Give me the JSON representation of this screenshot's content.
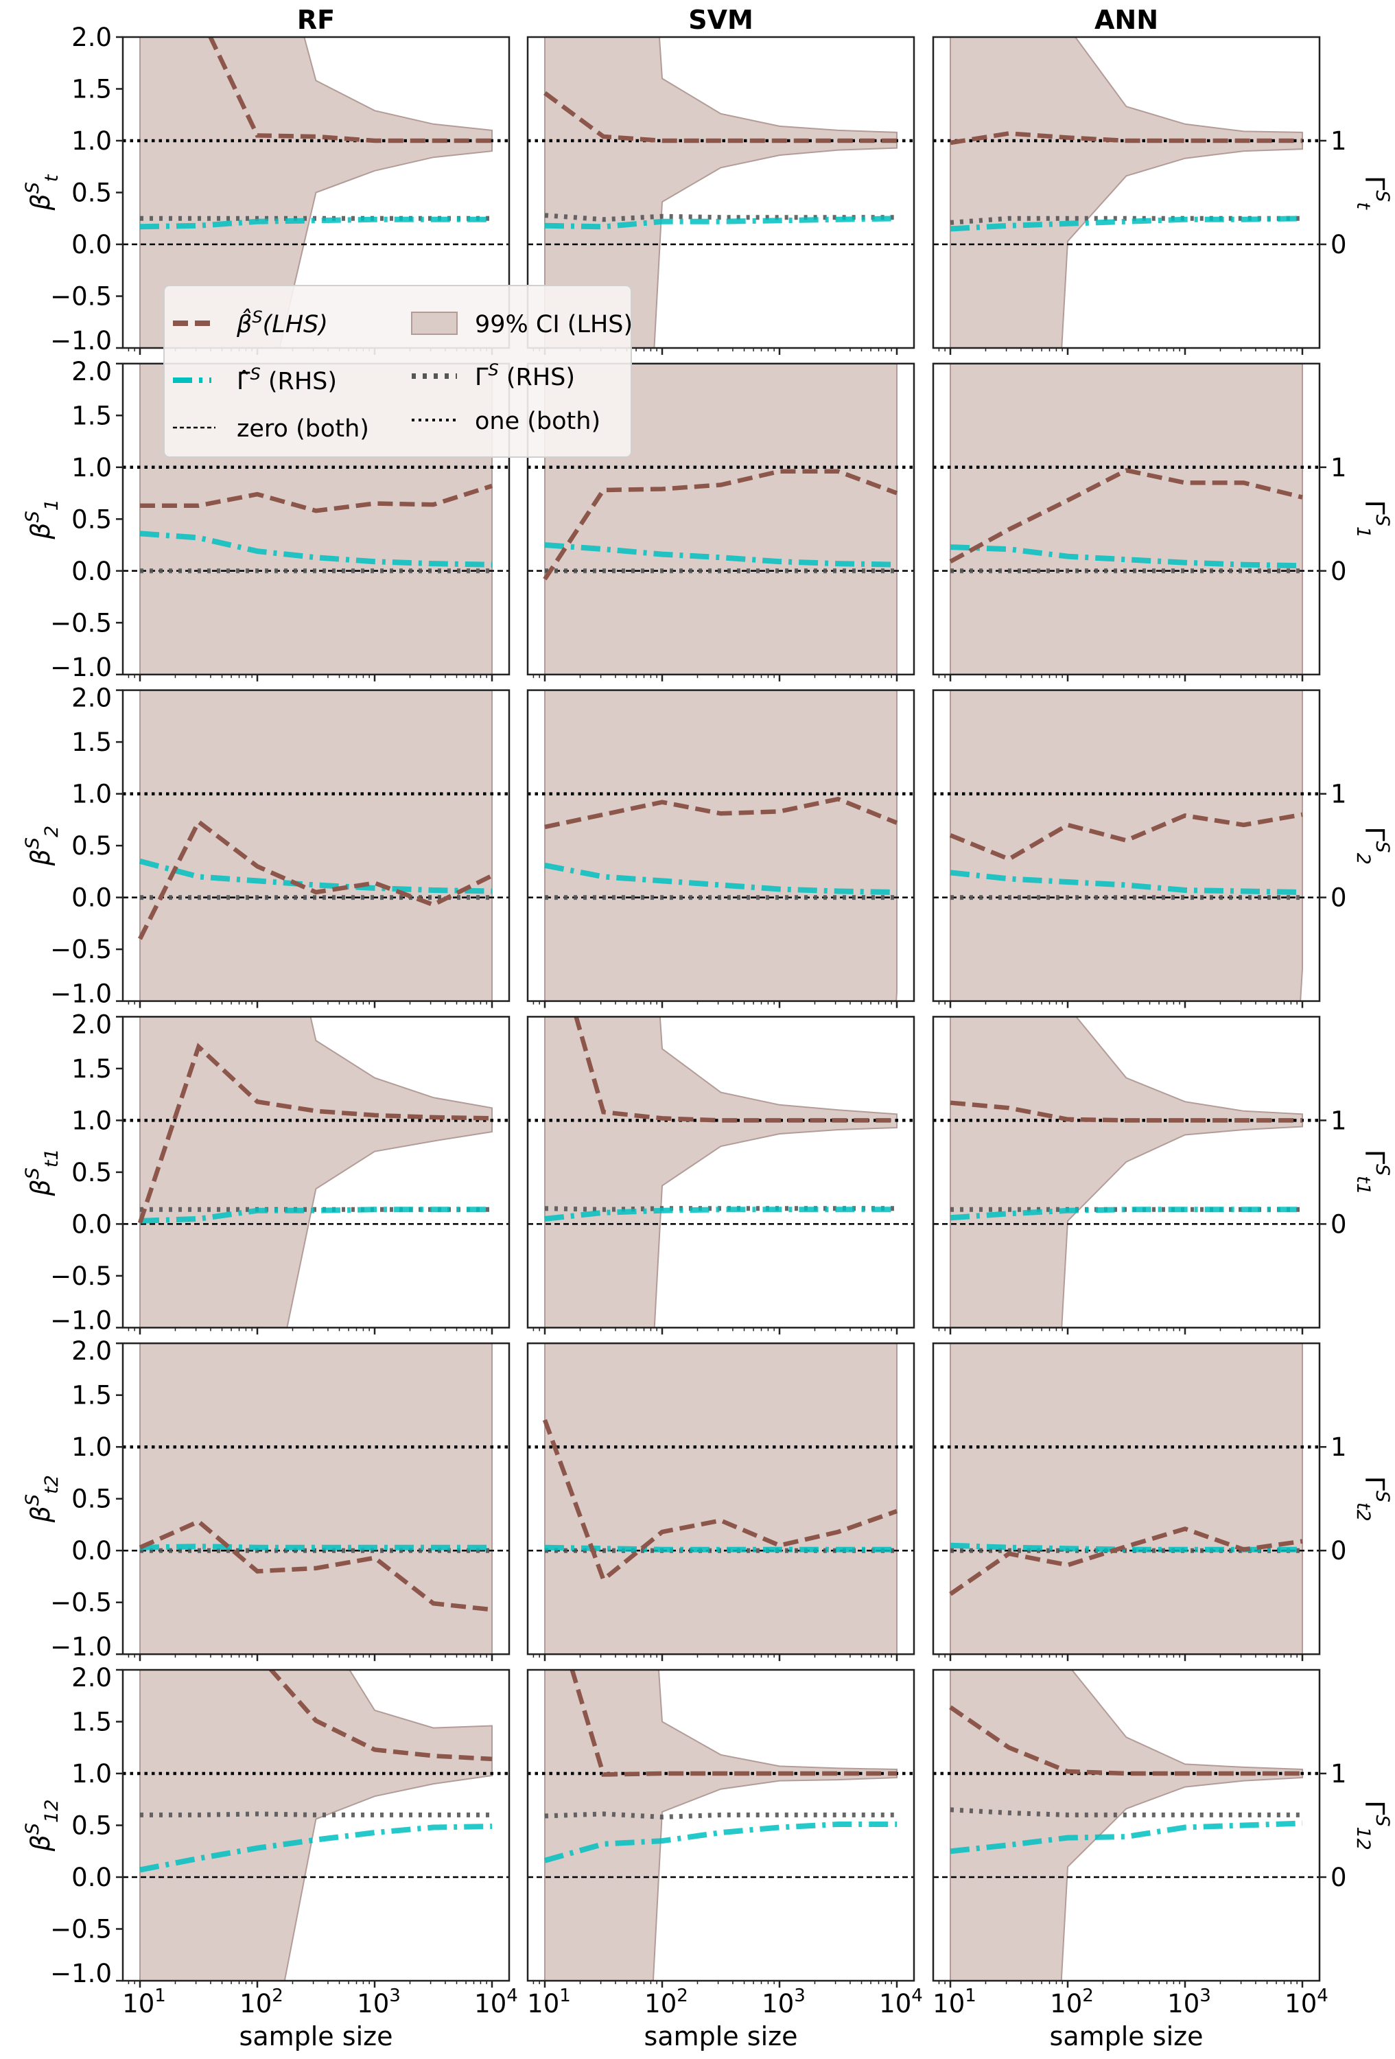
{
  "chart_data": {
    "type": "line",
    "title": "",
    "xlabel": "sample size",
    "x_scale": "log",
    "x": [
      10,
      31.6,
      100,
      316,
      1000,
      3162,
      10000
    ],
    "xlim_exp": [
      1,
      4
    ],
    "ylim": [
      -1.0,
      2.0
    ],
    "y_ticks": [
      {
        "value": 2.0,
        "label": "2.0"
      },
      {
        "value": 1.5,
        "label": "1.5"
      },
      {
        "value": 1.0,
        "label": "1.0"
      },
      {
        "value": 0.5,
        "label": "0.5"
      },
      {
        "value": 0.0,
        "label": "0.0"
      },
      {
        "value": -0.5,
        "label": "−0.5"
      },
      {
        "value": -1.0,
        "label": "−1.0"
      }
    ],
    "x_ticks": [
      {
        "exp": 1,
        "base": "10",
        "sup": "1"
      },
      {
        "exp": 2,
        "base": "10",
        "sup": "2"
      },
      {
        "exp": 3,
        "base": "10",
        "sup": "3"
      },
      {
        "exp": 4,
        "base": "10",
        "sup": "4"
      }
    ],
    "rhs_ticks": [
      {
        "value": 1,
        "label": "1"
      },
      {
        "value": 0,
        "label": "0"
      }
    ],
    "columns": [
      "RF",
      "SVM",
      "ANN"
    ],
    "colors": {
      "beta": "#8c564b",
      "ci_fill": "#dbccc8",
      "ci_edge": "#b39c97",
      "gamma_hat": "#00bfbf",
      "gamma": "#555555",
      "ref": "#000000"
    },
    "legend": {
      "placement": "upper-left rows 1-2",
      "entries": [
        {
          "key": "beta",
          "base": "β̂",
          "sup": "S",
          "rest": "(LHS)"
        },
        {
          "key": "ci",
          "base": "99% CI (LHS)",
          "sup": "",
          "rest": ""
        },
        {
          "key": "gamma_hat",
          "base": "Γ̂",
          "sup": "S",
          "rest": " (RHS)"
        },
        {
          "key": "gamma",
          "base": "Γ",
          "sup": "S",
          "rest": " (RHS)"
        },
        {
          "key": "zero",
          "base": "zero (both)",
          "sup": "",
          "rest": ""
        },
        {
          "key": "one",
          "base": "one (both)",
          "sup": "",
          "rest": ""
        }
      ]
    },
    "rows": [
      {
        "ylabel": {
          "base": "β",
          "sup": "S",
          "sub": "t"
        },
        "rlabel": {
          "base": "Γ",
          "sup": "S",
          "sub": "t"
        },
        "panels": [
          {
            "beta": [
              4.0,
              2.24,
              1.05,
              1.04,
              1.0,
              1.0,
              1.0
            ],
            "ci_upper": [
              10,
              10,
              3.68,
              1.58,
              1.29,
              1.16,
              1.1
            ],
            "ci_lower": [
              -10,
              -10,
              -1.92,
              0.5,
              0.71,
              0.84,
              0.9
            ],
            "gamma_hat": [
              0.17,
              0.18,
              0.22,
              0.23,
              0.24,
              0.24,
              0.24
            ],
            "gamma": [
              0.25,
              0.25,
              0.25,
              0.25,
              0.25,
              0.25,
              0.25
            ]
          },
          {
            "beta": [
              1.46,
              1.04,
              1.0,
              1.0,
              1.0,
              1.0,
              1.0
            ],
            "ci_upper": [
              10,
              10,
              1.6,
              1.26,
              1.14,
              1.1,
              1.08
            ],
            "ci_lower": [
              -10,
              -10,
              0.41,
              0.74,
              0.86,
              0.91,
              0.93
            ],
            "gamma_hat": [
              0.18,
              0.17,
              0.22,
              0.22,
              0.23,
              0.24,
              0.25
            ],
            "gamma": [
              0.28,
              0.24,
              0.27,
              0.26,
              0.26,
              0.26,
              0.26
            ]
          },
          {
            "beta": [
              0.98,
              1.07,
              1.03,
              1.0,
              1.0,
              1.0,
              1.0
            ],
            "ci_upper": [
              10,
              10,
              2.1,
              1.33,
              1.16,
              1.09,
              1.08
            ],
            "ci_lower": [
              -10,
              -10,
              0.03,
              0.66,
              0.83,
              0.9,
              0.92
            ],
            "gamma_hat": [
              0.15,
              0.18,
              0.2,
              0.22,
              0.24,
              0.24,
              0.25
            ],
            "gamma": [
              0.21,
              0.25,
              0.25,
              0.25,
              0.25,
              0.25,
              0.25
            ]
          }
        ]
      },
      {
        "ylabel": {
          "base": "β",
          "sup": "S",
          "sub": "1"
        },
        "rlabel": {
          "base": "Γ",
          "sup": "S",
          "sub": "1"
        },
        "panels": [
          {
            "beta": [
              0.63,
              0.63,
              0.74,
              0.58,
              0.65,
              0.64,
              0.82
            ],
            "ci_upper": [
              10,
              10,
              10,
              10,
              10,
              10,
              10
            ],
            "ci_lower": [
              -10,
              -10,
              -10,
              -10,
              -10,
              -10,
              -10
            ],
            "gamma_hat": [
              0.36,
              0.32,
              0.19,
              0.13,
              0.09,
              0.07,
              0.06
            ],
            "gamma": [
              0,
              0,
              0,
              0,
              0,
              0,
              0
            ]
          },
          {
            "beta": [
              -0.08,
              0.78,
              0.79,
              0.83,
              0.96,
              0.96,
              0.75
            ],
            "ci_upper": [
              10,
              10,
              10,
              10,
              10,
              10,
              10
            ],
            "ci_lower": [
              -10,
              -10,
              -10,
              -10,
              -10,
              -10,
              -10
            ],
            "gamma_hat": [
              0.25,
              0.21,
              0.16,
              0.13,
              0.09,
              0.07,
              0.06
            ],
            "gamma": [
              0,
              0,
              0,
              0,
              0,
              0,
              0
            ]
          },
          {
            "beta": [
              0.09,
              0.4,
              0.68,
              0.97,
              0.85,
              0.85,
              0.71
            ],
            "ci_upper": [
              10,
              10,
              10,
              10,
              10,
              10,
              10
            ],
            "ci_lower": [
              -10,
              -10,
              -10,
              -10,
              -10,
              -10,
              -10
            ],
            "gamma_hat": [
              0.23,
              0.21,
              0.14,
              0.11,
              0.08,
              0.06,
              0.05
            ],
            "gamma": [
              0,
              0,
              0,
              0,
              0,
              0,
              0
            ]
          }
        ]
      },
      {
        "ylabel": {
          "base": "β",
          "sup": "S",
          "sub": "2"
        },
        "rlabel": {
          "base": "Γ",
          "sup": "S",
          "sub": "2"
        },
        "panels": [
          {
            "beta": [
              -0.4,
              0.73,
              0.3,
              0.05,
              0.14,
              -0.07,
              0.21
            ],
            "ci_upper": [
              10,
              10,
              10,
              10,
              10,
              10,
              10
            ],
            "ci_lower": [
              -10,
              -10,
              -10,
              -10,
              -10,
              -10,
              -10
            ],
            "gamma_hat": [
              0.35,
              0.2,
              0.16,
              0.12,
              0.09,
              0.07,
              0.06
            ],
            "gamma": [
              0,
              0,
              0,
              0,
              0,
              0,
              0
            ]
          },
          {
            "beta": [
              0.68,
              0.8,
              0.92,
              0.81,
              0.83,
              0.95,
              0.72
            ],
            "ci_upper": [
              10,
              10,
              10,
              10,
              10,
              10,
              10
            ],
            "ci_lower": [
              -10,
              -10,
              -10,
              -10,
              -10,
              -10,
              -0.91
            ],
            "gamma_hat": [
              0.31,
              0.2,
              0.16,
              0.12,
              0.08,
              0.06,
              0.05
            ],
            "gamma": [
              0,
              0,
              0,
              0,
              0,
              0,
              0
            ]
          },
          {
            "beta": [
              0.6,
              0.37,
              0.7,
              0.55,
              0.79,
              0.7,
              0.8
            ],
            "ci_upper": [
              10,
              10,
              10,
              10,
              10,
              10,
              10
            ],
            "ci_lower": [
              -10,
              -10,
              -10,
              -10,
              -10,
              -10,
              -0.69
            ],
            "gamma_hat": [
              0.24,
              0.18,
              0.15,
              0.12,
              0.07,
              0.06,
              0.05
            ],
            "gamma": [
              0,
              0,
              0,
              0,
              0,
              0,
              0
            ]
          }
        ]
      },
      {
        "ylabel": {
          "base": "β",
          "sup": "S",
          "sub": "t1"
        },
        "rlabel": {
          "base": "Γ",
          "sup": "S",
          "sub": "t1"
        },
        "panels": [
          {
            "beta": [
              0.01,
              1.71,
              1.18,
              1.09,
              1.05,
              1.03,
              1.02
            ],
            "ci_upper": [
              10,
              10,
              4.25,
              1.77,
              1.41,
              1.22,
              1.12
            ],
            "ci_lower": [
              -10,
              -10,
              -2.38,
              0.34,
              0.7,
              0.8,
              0.89
            ],
            "gamma_hat": [
              0.03,
              0.05,
              0.13,
              0.13,
              0.14,
              0.14,
              0.14
            ],
            "gamma": [
              0.14,
              0.14,
              0.14,
              0.14,
              0.14,
              0.14,
              0.14
            ]
          },
          {
            "beta": [
              3.05,
              1.08,
              1.02,
              1.0,
              1.0,
              1.0,
              1.0
            ],
            "ci_upper": [
              10,
              10,
              1.69,
              1.27,
              1.15,
              1.1,
              1.06
            ],
            "ci_lower": [
              -10,
              -10,
              0.37,
              0.75,
              0.87,
              0.91,
              0.93
            ],
            "gamma_hat": [
              0.05,
              0.11,
              0.13,
              0.14,
              0.14,
              0.14,
              0.14
            ],
            "gamma": [
              0.15,
              0.14,
              0.15,
              0.15,
              0.15,
              0.15,
              0.15
            ]
          },
          {
            "beta": [
              1.17,
              1.12,
              1.01,
              1.0,
              1.0,
              1.0,
              1.0
            ],
            "ci_upper": [
              10,
              10,
              2.1,
              1.41,
              1.18,
              1.09,
              1.06
            ],
            "ci_lower": [
              -10,
              -10,
              0.03,
              0.6,
              0.86,
              0.91,
              0.94
            ],
            "gamma_hat": [
              0.06,
              0.1,
              0.13,
              0.14,
              0.14,
              0.14,
              0.14
            ],
            "gamma": [
              0.14,
              0.14,
              0.14,
              0.14,
              0.14,
              0.14,
              0.14
            ]
          }
        ]
      },
      {
        "ylabel": {
          "base": "β",
          "sup": "S",
          "sub": "t2"
        },
        "rlabel": {
          "base": "Γ",
          "sup": "S",
          "sub": "t2"
        },
        "panels": [
          {
            "beta": [
              0.03,
              0.28,
              -0.2,
              -0.17,
              -0.07,
              -0.51,
              -0.57
            ],
            "ci_upper": [
              10,
              10,
              10,
              10,
              10,
              10,
              10
            ],
            "ci_lower": [
              -10,
              -10,
              -10,
              -10,
              -10,
              -10,
              -10
            ],
            "gamma_hat": [
              0.03,
              0.04,
              0.03,
              0.03,
              0.03,
              0.03,
              0.03
            ],
            "gamma": [
              0,
              0,
              0,
              0,
              0,
              0,
              0
            ]
          },
          {
            "beta": [
              1.26,
              -0.28,
              0.18,
              0.29,
              0.05,
              0.18,
              0.38
            ],
            "ci_upper": [
              10,
              10,
              10,
              10,
              10,
              10,
              10
            ],
            "ci_lower": [
              -10,
              -10,
              -10,
              -10,
              -10,
              -10,
              -10
            ],
            "gamma_hat": [
              0.03,
              0.02,
              0.01,
              0.01,
              0.01,
              0.01,
              0.01
            ],
            "gamma": [
              0,
              0,
              0,
              0,
              0,
              0,
              0
            ]
          },
          {
            "beta": [
              -0.42,
              -0.03,
              -0.14,
              0.04,
              0.21,
              0.01,
              0.09
            ],
            "ci_upper": [
              10,
              10,
              10,
              10,
              10,
              10,
              10
            ],
            "ci_lower": [
              -10,
              -10,
              -10,
              -10,
              -10,
              -10,
              -10
            ],
            "gamma_hat": [
              0.05,
              0.03,
              0.02,
              0.01,
              0.01,
              0.01,
              0.01
            ],
            "gamma": [
              0,
              0,
              0,
              0,
              0,
              0,
              0
            ]
          }
        ]
      },
      {
        "ylabel": {
          "base": "β",
          "sup": "S",
          "sub": "12"
        },
        "rlabel": {
          "base": "Γ",
          "sup": "S",
          "sub": "12"
        },
        "panels": [
          {
            "beta": [
              4.0,
              3.0,
              2.15,
              1.51,
              1.23,
              1.17,
              1.14
            ],
            "ci_upper": [
              10,
              10,
              10,
              2.52,
              1.61,
              1.44,
              1.46
            ],
            "ci_lower": [
              -10,
              -10,
              -2.36,
              0.56,
              0.78,
              0.9,
              0.98
            ],
            "gamma_hat": [
              0.07,
              0.18,
              0.28,
              0.36,
              0.43,
              0.48,
              0.49
            ],
            "gamma": [
              0.6,
              0.6,
              0.61,
              0.6,
              0.6,
              0.6,
              0.6
            ]
          },
          {
            "beta": [
              2.88,
              0.99,
              1.0,
              1.0,
              1.0,
              1.0,
              1.0
            ],
            "ci_upper": [
              10,
              10,
              1.5,
              1.18,
              1.07,
              1.05,
              1.04
            ],
            "ci_lower": [
              -10,
              -10,
              0.63,
              0.85,
              0.93,
              0.94,
              0.96
            ],
            "gamma_hat": [
              0.16,
              0.32,
              0.35,
              0.43,
              0.48,
              0.51,
              0.51
            ],
            "gamma": [
              0.59,
              0.61,
              0.58,
              0.6,
              0.6,
              0.6,
              0.6
            ]
          },
          {
            "beta": [
              1.64,
              1.25,
              1.02,
              1.0,
              1.0,
              1.0,
              1.0
            ],
            "ci_upper": [
              10,
              10,
              2.05,
              1.35,
              1.09,
              1.06,
              1.04
            ],
            "ci_lower": [
              -10,
              -10,
              0.1,
              0.66,
              0.87,
              0.93,
              0.96
            ],
            "gamma_hat": [
              0.25,
              0.31,
              0.38,
              0.39,
              0.48,
              0.5,
              0.52
            ],
            "gamma": [
              0.65,
              0.62,
              0.6,
              0.6,
              0.6,
              0.6,
              0.6
            ]
          }
        ]
      }
    ]
  }
}
